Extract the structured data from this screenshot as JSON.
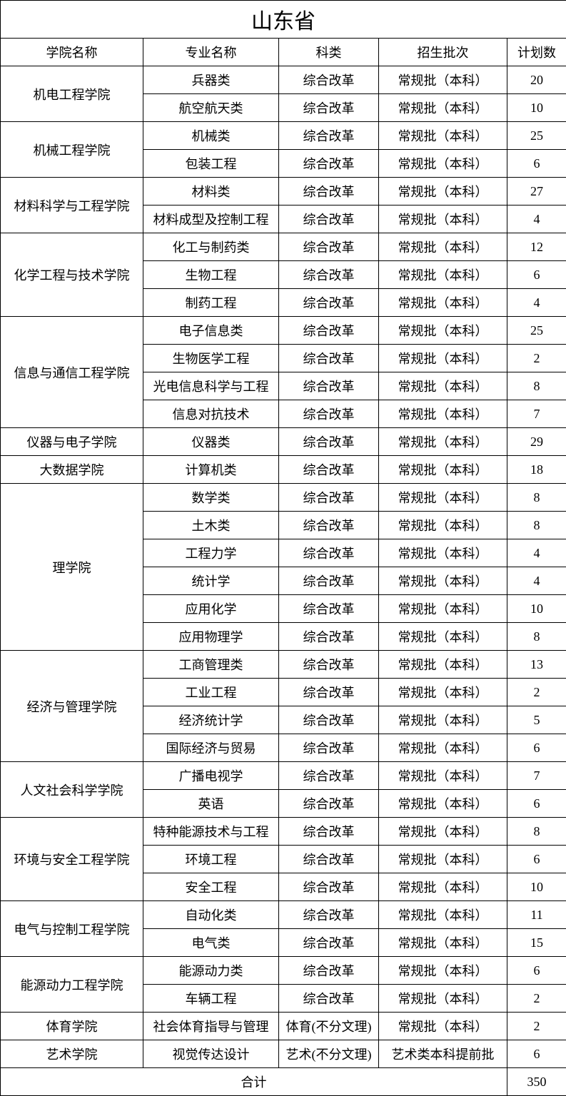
{
  "title": "山东省",
  "columns": [
    "学院名称",
    "专业名称",
    "科类",
    "招生批次",
    "计划数"
  ],
  "total_label": "合计",
  "total_value": 350,
  "colleges": [
    {
      "name": "机电工程学院",
      "rows": [
        {
          "major": "兵器类",
          "category": "综合改革",
          "batch": "常规批（本科）",
          "count": 20
        },
        {
          "major": "航空航天类",
          "category": "综合改革",
          "batch": "常规批（本科）",
          "count": 10
        }
      ]
    },
    {
      "name": "机械工程学院",
      "rows": [
        {
          "major": "机械类",
          "category": "综合改革",
          "batch": "常规批（本科）",
          "count": 25
        },
        {
          "major": "包装工程",
          "category": "综合改革",
          "batch": "常规批（本科）",
          "count": 6
        }
      ]
    },
    {
      "name": "材料科学与工程学院",
      "rows": [
        {
          "major": "材料类",
          "category": "综合改革",
          "batch": "常规批（本科）",
          "count": 27
        },
        {
          "major": "材料成型及控制工程",
          "category": "综合改革",
          "batch": "常规批（本科）",
          "count": 4
        }
      ]
    },
    {
      "name": "化学工程与技术学院",
      "rows": [
        {
          "major": "化工与制药类",
          "category": "综合改革",
          "batch": "常规批（本科）",
          "count": 12
        },
        {
          "major": "生物工程",
          "category": "综合改革",
          "batch": "常规批（本科）",
          "count": 6
        },
        {
          "major": "制药工程",
          "category": "综合改革",
          "batch": "常规批（本科）",
          "count": 4
        }
      ]
    },
    {
      "name": "信息与通信工程学院",
      "rows": [
        {
          "major": "电子信息类",
          "category": "综合改革",
          "batch": "常规批（本科）",
          "count": 25
        },
        {
          "major": "生物医学工程",
          "category": "综合改革",
          "batch": "常规批（本科）",
          "count": 2
        },
        {
          "major": "光电信息科学与工程",
          "category": "综合改革",
          "batch": "常规批（本科）",
          "count": 8
        },
        {
          "major": "信息对抗技术",
          "category": "综合改革",
          "batch": "常规批（本科）",
          "count": 7
        }
      ]
    },
    {
      "name": "仪器与电子学院",
      "rows": [
        {
          "major": "仪器类",
          "category": "综合改革",
          "batch": "常规批（本科）",
          "count": 29
        }
      ]
    },
    {
      "name": "大数据学院",
      "rows": [
        {
          "major": "计算机类",
          "category": "综合改革",
          "batch": "常规批（本科）",
          "count": 18
        }
      ]
    },
    {
      "name": "理学院",
      "rows": [
        {
          "major": "数学类",
          "category": "综合改革",
          "batch": "常规批（本科）",
          "count": 8
        },
        {
          "major": "土木类",
          "category": "综合改革",
          "batch": "常规批（本科）",
          "count": 8
        },
        {
          "major": "工程力学",
          "category": "综合改革",
          "batch": "常规批（本科）",
          "count": 4
        },
        {
          "major": "统计学",
          "category": "综合改革",
          "batch": "常规批（本科）",
          "count": 4
        },
        {
          "major": "应用化学",
          "category": "综合改革",
          "batch": "常规批（本科）",
          "count": 10
        },
        {
          "major": "应用物理学",
          "category": "综合改革",
          "batch": "常规批（本科）",
          "count": 8
        }
      ]
    },
    {
      "name": "经济与管理学院",
      "rows": [
        {
          "major": "工商管理类",
          "category": "综合改革",
          "batch": "常规批（本科）",
          "count": 13
        },
        {
          "major": "工业工程",
          "category": "综合改革",
          "batch": "常规批（本科）",
          "count": 2
        },
        {
          "major": "经济统计学",
          "category": "综合改革",
          "batch": "常规批（本科）",
          "count": 5
        },
        {
          "major": "国际经济与贸易",
          "category": "综合改革",
          "batch": "常规批（本科）",
          "count": 6
        }
      ]
    },
    {
      "name": "人文社会科学学院",
      "rows": [
        {
          "major": "广播电视学",
          "category": "综合改革",
          "batch": "常规批（本科）",
          "count": 7
        },
        {
          "major": "英语",
          "category": "综合改革",
          "batch": "常规批（本科）",
          "count": 6
        }
      ]
    },
    {
      "name": "环境与安全工程学院",
      "rows": [
        {
          "major": "特种能源技术与工程",
          "category": "综合改革",
          "batch": "常规批（本科）",
          "count": 8
        },
        {
          "major": "环境工程",
          "category": "综合改革",
          "batch": "常规批（本科）",
          "count": 6
        },
        {
          "major": "安全工程",
          "category": "综合改革",
          "batch": "常规批（本科）",
          "count": 10
        }
      ]
    },
    {
      "name": "电气与控制工程学院",
      "rows": [
        {
          "major": "自动化类",
          "category": "综合改革",
          "batch": "常规批（本科）",
          "count": 11
        },
        {
          "major": "电气类",
          "category": "综合改革",
          "batch": "常规批（本科）",
          "count": 15
        }
      ]
    },
    {
      "name": "能源动力工程学院",
      "rows": [
        {
          "major": "能源动力类",
          "category": "综合改革",
          "batch": "常规批（本科）",
          "count": 6
        },
        {
          "major": "车辆工程",
          "category": "综合改革",
          "batch": "常规批（本科）",
          "count": 2
        }
      ]
    },
    {
      "name": "体育学院",
      "rows": [
        {
          "major": "社会体育指导与管理",
          "category": "体育(不分文理)",
          "batch": "常规批（本科）",
          "count": 2
        }
      ]
    },
    {
      "name": "艺术学院",
      "rows": [
        {
          "major": "视觉传达设计",
          "category": "艺术(不分文理)",
          "batch": "艺术类本科提前批",
          "count": 6
        }
      ]
    }
  ]
}
